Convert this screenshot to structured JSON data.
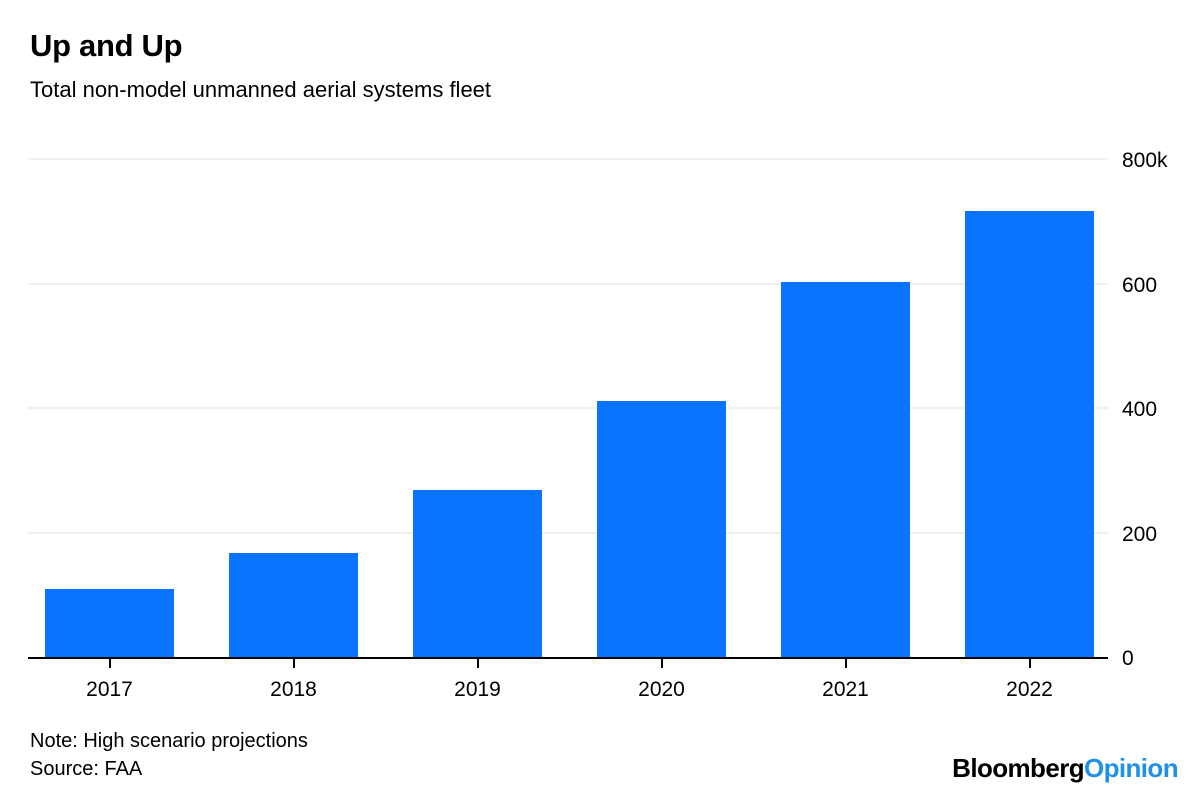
{
  "header": {
    "title": "Up and Up",
    "subtitle": "Total non-model unmanned aerial systems fleet"
  },
  "chart_data": {
    "type": "bar",
    "categories": [
      "2017",
      "2018",
      "2019",
      "2020",
      "2021",
      "2022"
    ],
    "values": [
      110,
      167,
      268,
      412,
      603,
      717
    ],
    "values_unit": "thousands",
    "title": "Up and Up",
    "subtitle": "Total non-model unmanned aerial systems fleet",
    "xlabel": "",
    "ylabel": "",
    "ylim": [
      0,
      800
    ],
    "yticks": [
      {
        "value": 0,
        "label": "0"
      },
      {
        "value": 200,
        "label": "200"
      },
      {
        "value": 400,
        "label": "400"
      },
      {
        "value": 600,
        "label": "600"
      },
      {
        "value": 800,
        "label": "800k"
      }
    ],
    "grid": "horizontal",
    "legend": "none",
    "axis_side": "right",
    "bar_color": "#0a73ff",
    "gridline_color": "#f0f0f0",
    "axis_color": "#000000"
  },
  "footer": {
    "note": "Note: High scenario projections",
    "source": "Source: FAA"
  },
  "branding": {
    "brand": "Bloomberg",
    "product": "Opinion",
    "brand_color": "#000000",
    "product_color": "#2191e7"
  }
}
